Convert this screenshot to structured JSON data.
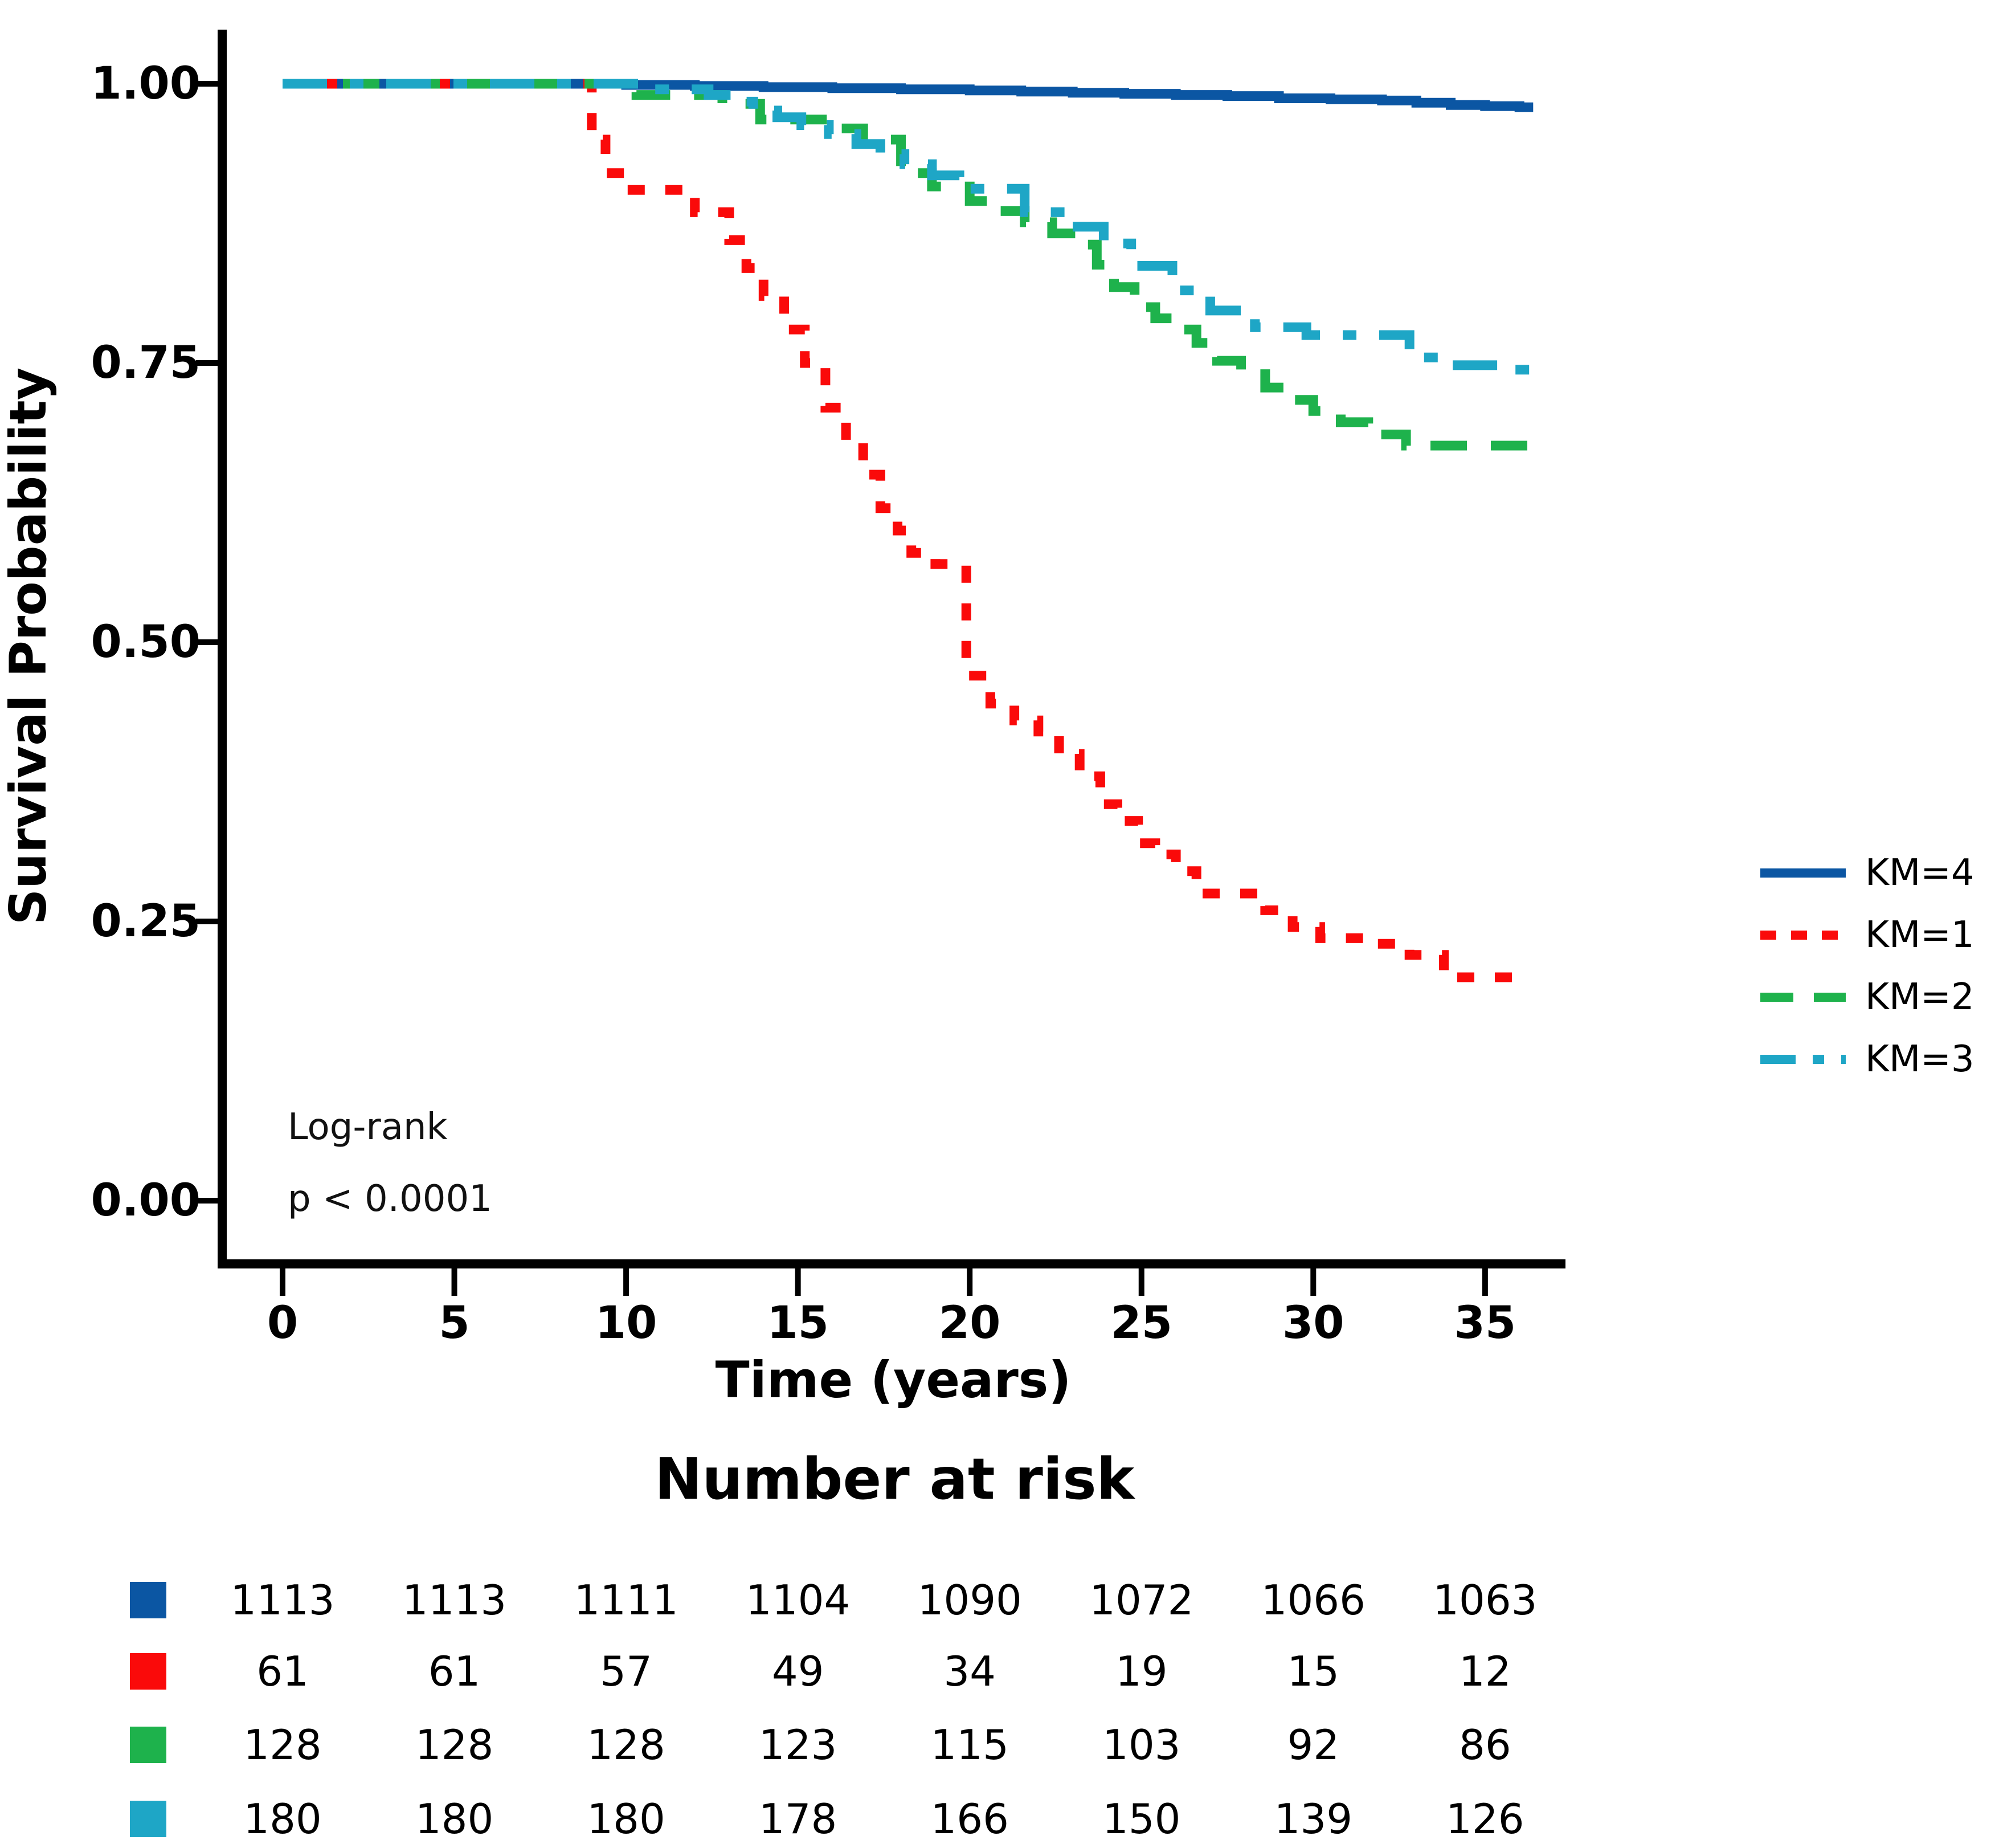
{
  "axes": {
    "y_label": "Survival Probability",
    "x_label": "Time (years)",
    "y_ticks": [
      {
        "label": "1.00",
        "value": 1.0
      },
      {
        "label": "0.75",
        "value": 0.75
      },
      {
        "label": "0.50",
        "value": 0.5
      },
      {
        "label": "0.25",
        "value": 0.25
      },
      {
        "label": "0.00",
        "value": 0.0
      }
    ],
    "x_ticks": [
      {
        "label": "0",
        "value": 0
      },
      {
        "label": "5",
        "value": 5
      },
      {
        "label": "10",
        "value": 10
      },
      {
        "label": "15",
        "value": 15
      },
      {
        "label": "20",
        "value": 20
      },
      {
        "label": "25",
        "value": 25
      },
      {
        "label": "30",
        "value": 30
      },
      {
        "label": "35",
        "value": 35
      }
    ]
  },
  "annotation": {
    "line1": "Log-rank",
    "line2": "p < 0.0001"
  },
  "legend": {
    "items": [
      {
        "label": "KM=4",
        "color": "#0b56a3",
        "dash": "solid"
      },
      {
        "label": "KM=1",
        "color": "#fa0a0a",
        "dash": "dotted"
      },
      {
        "label": "KM=2",
        "color": "#1eb24c",
        "dash": "dashed"
      },
      {
        "label": "KM=3",
        "color": "#1ea6c6",
        "dash": "dashdot"
      }
    ]
  },
  "risk_table": {
    "title": "Number at risk",
    "rows": [
      {
        "series": "KM=4",
        "color": "#0b56a3",
        "values": [
          "1113",
          "1113",
          "1111",
          "1104",
          "1090",
          "1072",
          "1066",
          "1063"
        ]
      },
      {
        "series": "KM=1",
        "color": "#fa0a0a",
        "values": [
          "61",
          "61",
          "57",
          "49",
          "34",
          "19",
          "15",
          "12"
        ]
      },
      {
        "series": "KM=2",
        "color": "#1eb24c",
        "values": [
          "128",
          "128",
          "128",
          "123",
          "115",
          "103",
          "92",
          "86"
        ]
      },
      {
        "series": "KM=3",
        "color": "#1ea6c6",
        "values": [
          "180",
          "180",
          "180",
          "178",
          "166",
          "150",
          "139",
          "126"
        ]
      }
    ]
  },
  "chart_data": {
    "type": "line",
    "subtype": "kaplan-meier-step",
    "title": "",
    "xlabel": "Time (years)",
    "ylabel": "Survival Probability",
    "xlim": [
      0,
      37
    ],
    "ylim": [
      0,
      1.0
    ],
    "grid": false,
    "legend_position": "right",
    "x_tick_values": [
      0,
      5,
      10,
      15,
      20,
      25,
      30,
      35
    ],
    "y_tick_values": [
      0,
      0.25,
      0.5,
      0.75,
      1.0
    ],
    "annotation": "Log-rank p < 0.0001",
    "series": [
      {
        "name": "KM=4",
        "color": "#0b56a3",
        "dash": "solid",
        "t_end": 36.4,
        "points": [
          [
            0,
            1.0
          ],
          [
            10,
            0.999
          ],
          [
            12,
            0.998
          ],
          [
            14,
            0.997
          ],
          [
            16,
            0.996
          ],
          [
            18,
            0.995
          ],
          [
            20,
            0.994
          ],
          [
            21.5,
            0.993
          ],
          [
            23,
            0.992
          ],
          [
            24.5,
            0.991
          ],
          [
            26,
            0.99
          ],
          [
            27.5,
            0.989
          ],
          [
            29,
            0.987
          ],
          [
            30.5,
            0.986
          ],
          [
            32,
            0.985
          ],
          [
            33,
            0.983
          ],
          [
            34,
            0.981
          ],
          [
            35,
            0.98
          ],
          [
            36,
            0.979
          ]
        ]
      },
      {
        "name": "KM=1",
        "color": "#fa0a0a",
        "dash": "dotted",
        "t_end": 36.0,
        "points": [
          [
            0,
            1.0
          ],
          [
            9,
            0.95
          ],
          [
            9.4,
            0.92
          ],
          [
            10,
            0.905
          ],
          [
            12,
            0.885
          ],
          [
            13,
            0.86
          ],
          [
            13.5,
            0.835
          ],
          [
            14,
            0.81
          ],
          [
            14.6,
            0.78
          ],
          [
            15.2,
            0.75
          ],
          [
            15.8,
            0.71
          ],
          [
            16.4,
            0.68
          ],
          [
            16.9,
            0.65
          ],
          [
            17.4,
            0.62
          ],
          [
            17.9,
            0.6
          ],
          [
            18.3,
            0.58
          ],
          [
            19,
            0.57
          ],
          [
            19.9,
            0.47
          ],
          [
            20.6,
            0.445
          ],
          [
            21.3,
            0.43
          ],
          [
            22,
            0.42
          ],
          [
            22.6,
            0.4
          ],
          [
            23.2,
            0.38
          ],
          [
            23.8,
            0.355
          ],
          [
            24.3,
            0.34
          ],
          [
            24.9,
            0.32
          ],
          [
            25.4,
            0.31
          ],
          [
            26,
            0.295
          ],
          [
            26.6,
            0.275
          ],
          [
            28.6,
            0.26
          ],
          [
            29.4,
            0.245
          ],
          [
            30.2,
            0.235
          ],
          [
            31.5,
            0.23
          ],
          [
            32.8,
            0.22
          ],
          [
            33.8,
            0.2
          ]
        ]
      },
      {
        "name": "KM=2",
        "color": "#1eb24c",
        "dash": "dashed",
        "t_end": 36.4,
        "points": [
          [
            0,
            1.0
          ],
          [
            10.3,
            0.99
          ],
          [
            12.8,
            0.982
          ],
          [
            13.9,
            0.968
          ],
          [
            15.9,
            0.96
          ],
          [
            16.9,
            0.95
          ],
          [
            18,
            0.92
          ],
          [
            18.9,
            0.908
          ],
          [
            20,
            0.895
          ],
          [
            20.8,
            0.886
          ],
          [
            21.6,
            0.876
          ],
          [
            22.4,
            0.866
          ],
          [
            23.2,
            0.856
          ],
          [
            23.7,
            0.838
          ],
          [
            24.2,
            0.818
          ],
          [
            24.8,
            0.8
          ],
          [
            25.4,
            0.79
          ],
          [
            26,
            0.78
          ],
          [
            26.6,
            0.768
          ],
          [
            27.2,
            0.752
          ],
          [
            27.9,
            0.74
          ],
          [
            28.6,
            0.728
          ],
          [
            29.3,
            0.717
          ],
          [
            30,
            0.707
          ],
          [
            30.8,
            0.697
          ],
          [
            31.6,
            0.686
          ],
          [
            32.7,
            0.676
          ]
        ]
      },
      {
        "name": "KM=3",
        "color": "#1ea6c6",
        "dash": "dashdot",
        "t_end": 36.4,
        "points": [
          [
            0,
            1.0
          ],
          [
            10.5,
            0.995
          ],
          [
            12.4,
            0.99
          ],
          [
            13.1,
            0.984
          ],
          [
            13.7,
            0.976
          ],
          [
            14.4,
            0.97
          ],
          [
            15.1,
            0.963
          ],
          [
            15.9,
            0.955
          ],
          [
            16.7,
            0.946
          ],
          [
            17.4,
            0.937
          ],
          [
            18.1,
            0.928
          ],
          [
            18.9,
            0.918
          ],
          [
            19.7,
            0.906
          ],
          [
            21.6,
            0.885
          ],
          [
            22.8,
            0.872
          ],
          [
            23.9,
            0.857
          ],
          [
            24.7,
            0.837
          ],
          [
            25.9,
            0.815
          ],
          [
            27,
            0.797
          ],
          [
            28.3,
            0.782
          ],
          [
            29.8,
            0.775
          ],
          [
            32.8,
            0.755
          ],
          [
            34,
            0.748
          ],
          [
            35.5,
            0.744
          ]
        ]
      }
    ],
    "number_at_risk": {
      "times": [
        0,
        5,
        10,
        15,
        20,
        25,
        30,
        35
      ],
      "KM=4": [
        1113,
        1113,
        1111,
        1104,
        1090,
        1072,
        1066,
        1063
      ],
      "KM=1": [
        61,
        61,
        57,
        49,
        34,
        19,
        15,
        12
      ],
      "KM=2": [
        128,
        128,
        128,
        123,
        115,
        103,
        92,
        86
      ],
      "KM=3": [
        180,
        180,
        180,
        178,
        166,
        150,
        139,
        126
      ]
    }
  }
}
